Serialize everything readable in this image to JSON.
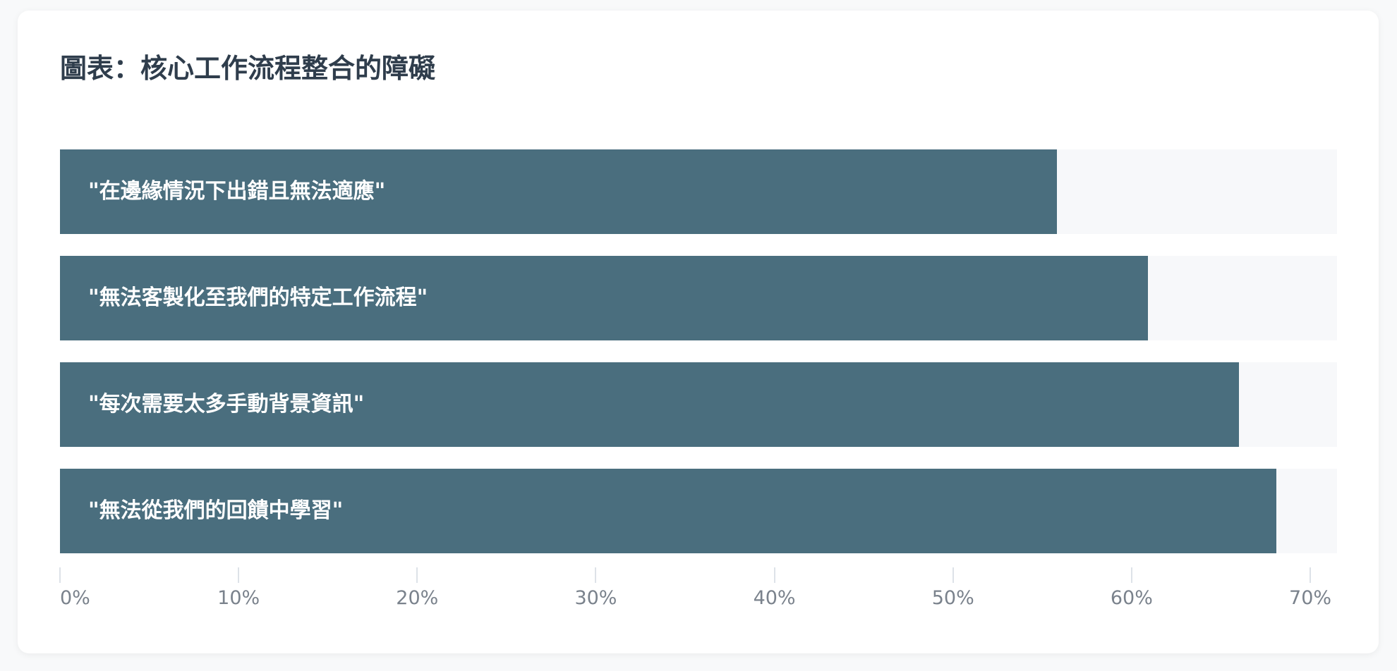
{
  "chart_data": {
    "type": "bar",
    "orientation": "horizontal",
    "title": "圖表：核心工作流程整合的障礙",
    "categories": [
      "\"在邊緣情況下出錯且無法適應\"",
      "\"無法客製化至我們的特定工作流程\"",
      "\"每次需要太多手動背景資訊\"",
      "\"無法從我們的回饋中學習\""
    ],
    "values": [
      55.8,
      60.9,
      66.0,
      68.1
    ],
    "unit": "%",
    "xlim": [
      0,
      71.5
    ],
    "x_ticks": [
      "0%",
      "10%",
      "20%",
      "30%",
      "40%",
      "50%",
      "60%",
      "70%"
    ],
    "x_tick_values": [
      0,
      10,
      20,
      30,
      40,
      50,
      60,
      70
    ],
    "grid": false,
    "legend": "none",
    "colors": {
      "bar": "#4a6e7e",
      "track": "#f7f8fa",
      "title": "#2f3d4c",
      "tick_label": "#7a828c"
    }
  }
}
